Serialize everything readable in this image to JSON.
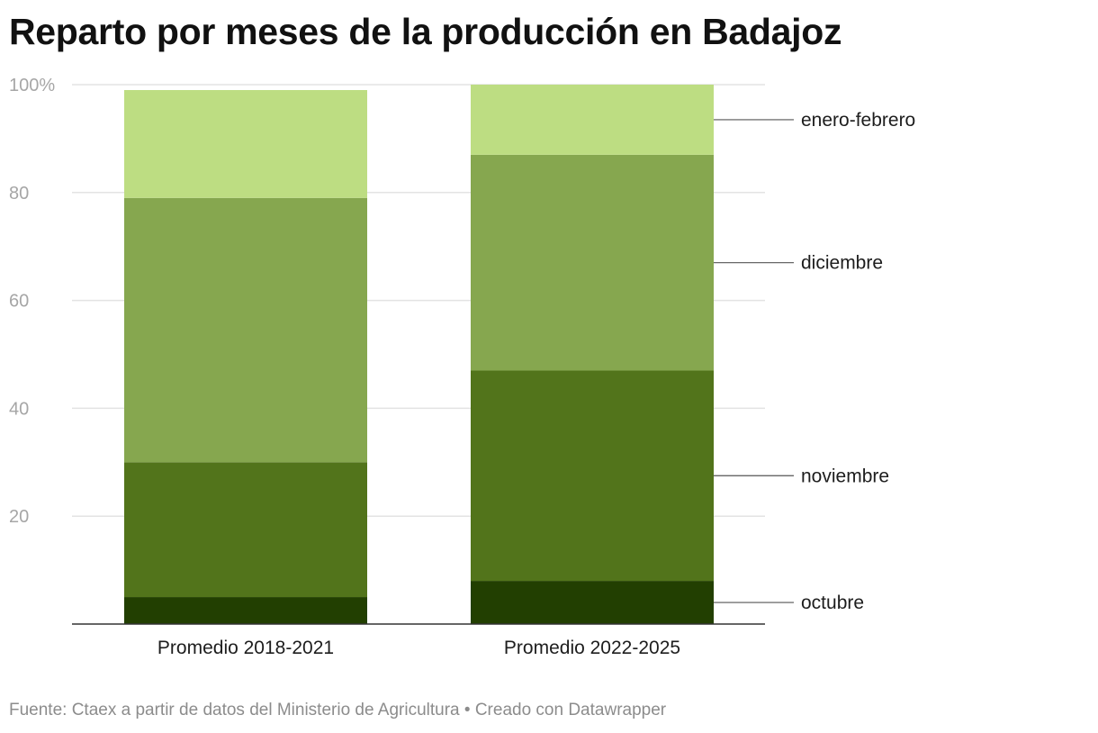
{
  "title": "Reparto por meses de la producción en Badajoz",
  "footer": {
    "source": "Fuente: Ctaex a partir de datos del Ministerio de Agricultura",
    "separator": "•",
    "credit": "Creado con Datawrapper"
  },
  "chart_data": {
    "type": "bar",
    "stacked": true,
    "categories": [
      "Promedio 2018-2021",
      "Promedio 2022-2025"
    ],
    "series": [
      {
        "name": "octubre",
        "values": [
          5,
          8
        ],
        "color": "#223f01"
      },
      {
        "name": "noviembre",
        "values": [
          25,
          39
        ],
        "color": "#52741b"
      },
      {
        "name": "diciembre",
        "values": [
          49,
          40
        ],
        "color": "#86a74f"
      },
      {
        "name": "enero-febrero",
        "values": [
          20,
          13
        ],
        "color": "#bddd82"
      }
    ],
    "ylim": [
      0,
      100
    ],
    "yticks": [
      20,
      40,
      60,
      80,
      100
    ],
    "ytick_labels": [
      "20",
      "40",
      "60",
      "80",
      "100%"
    ],
    "grid": true,
    "legend": "direct-labels-right"
  }
}
